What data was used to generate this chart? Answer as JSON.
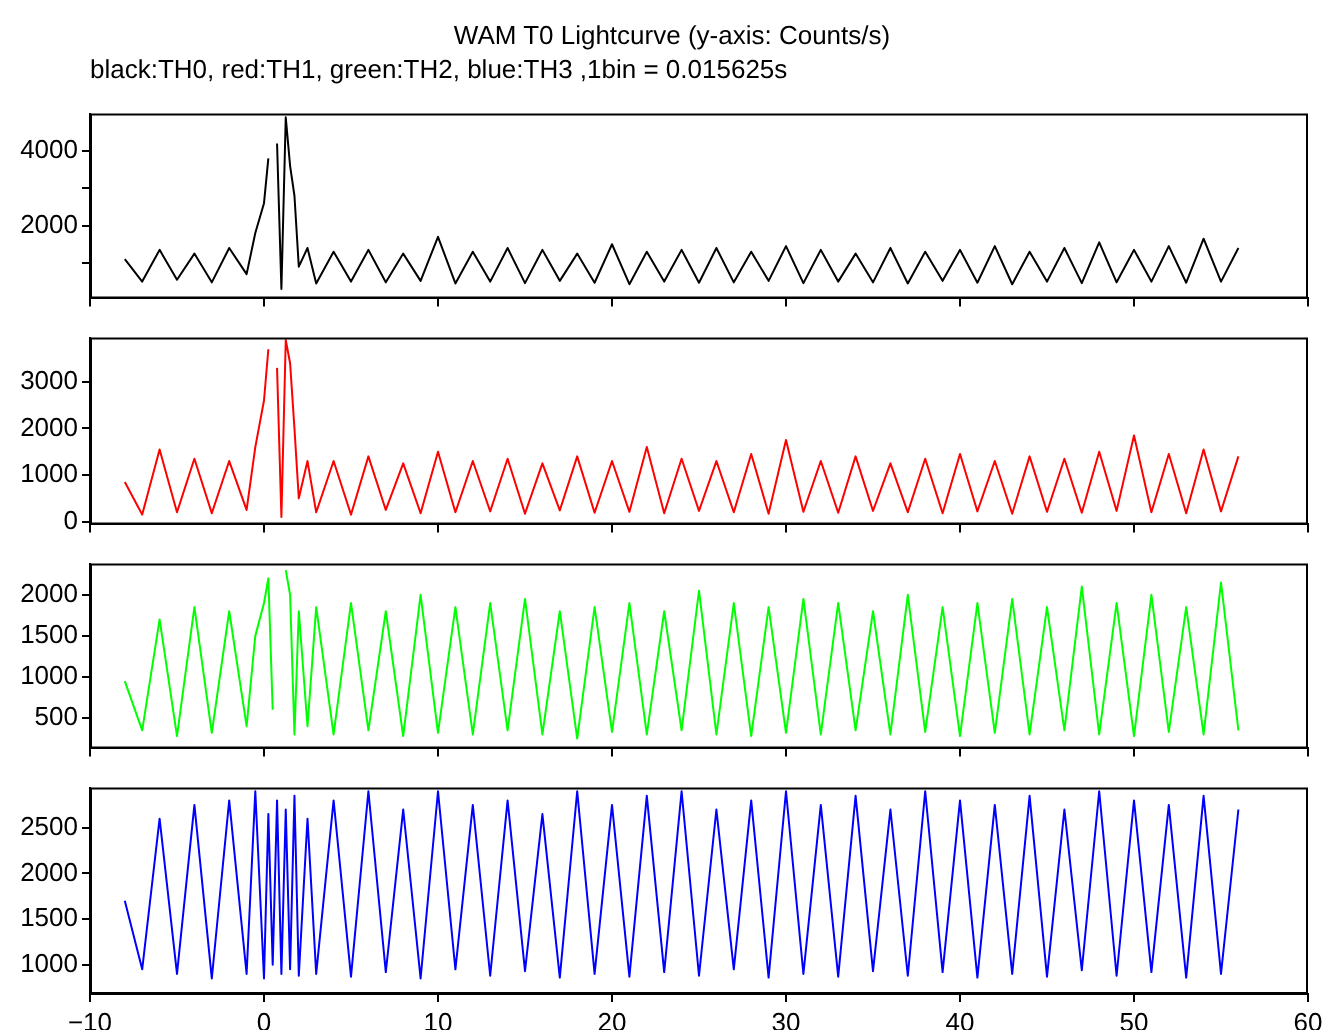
{
  "chart_data": [
    {
      "type": "line",
      "title": "WAM T0 Lightcurve (y-axis: Counts/s)",
      "subtitle": "black:TH0, red:TH1, green:TH2, blue:TH3 ,1bin = 0.015625s",
      "marker": "none",
      "tick_labels": "y",
      "x": [
        -8,
        -7,
        -6,
        -5,
        -4,
        -3,
        -2,
        -1,
        -0.5,
        0,
        0.25,
        0.5,
        0.75,
        1,
        1.25,
        1.5,
        1.75,
        2,
        2.5,
        3,
        4,
        5,
        6,
        7,
        8,
        9,
        10,
        11,
        12,
        13,
        14,
        15,
        16,
        17,
        18,
        19,
        20,
        21,
        22,
        23,
        24,
        25,
        26,
        27,
        28,
        29,
        30,
        31,
        32,
        33,
        34,
        35,
        36,
        37,
        38,
        39,
        40,
        41,
        42,
        43,
        44,
        45,
        46,
        47,
        48,
        49,
        50,
        51,
        52,
        53,
        54,
        55,
        56
      ],
      "xlim": [
        -10,
        60
      ],
      "ylim": [
        50,
        5000
      ],
      "yticks": [
        {
          "value": 1000,
          "label": null
        },
        2000,
        {
          "value": 3000,
          "label": null
        },
        4000
      ],
      "series": [
        {
          "color": "#000000",
          "values": [
            1100,
            500,
            1350,
            550,
            1250,
            480,
            1400,
            700,
            1800,
            2600,
            3800,
            null,
            4200,
            300,
            4900,
            3600,
            2800,
            900,
            1400,
            450,
            1300,
            500,
            1350,
            480,
            1250,
            520,
            1700,
            450,
            1300,
            500,
            1400,
            460,
            1350,
            520,
            1250,
            470,
            1500,
            430,
            1300,
            500,
            1350,
            470,
            1400,
            480,
            1300,
            520,
            1450,
            460,
            1350,
            500,
            1250,
            480,
            1400,
            450,
            1300,
            520,
            1350,
            470,
            1450,
            430,
            1300,
            500,
            1400,
            460,
            1550,
            480,
            1350,
            500,
            1450,
            470,
            1650,
            500,
            1400
          ]
        }
      ]
    },
    {
      "type": "line",
      "marker": "none",
      "tick_labels": "y",
      "x": [
        -8,
        -7,
        -6,
        -5,
        -4,
        -3,
        -2,
        -1,
        -0.5,
        0,
        0.25,
        0.5,
        0.75,
        1,
        1.25,
        1.5,
        1.75,
        2,
        2.5,
        3,
        4,
        5,
        6,
        7,
        8,
        9,
        10,
        11,
        12,
        13,
        14,
        15,
        16,
        17,
        18,
        19,
        20,
        21,
        22,
        23,
        24,
        25,
        26,
        27,
        28,
        29,
        30,
        31,
        32,
        33,
        34,
        35,
        36,
        37,
        38,
        39,
        40,
        41,
        42,
        43,
        44,
        45,
        46,
        47,
        48,
        49,
        50,
        51,
        52,
        53,
        54,
        55,
        56
      ],
      "xlim": [
        -10,
        60
      ],
      "ylim": [
        -60,
        3950
      ],
      "yticks": [
        0,
        1000,
        2000,
        3000
      ],
      "series": [
        {
          "color": "#ff0000",
          "values": [
            850,
            150,
            1550,
            200,
            1350,
            180,
            1300,
            250,
            1600,
            2600,
            3700,
            null,
            3300,
            100,
            3900,
            3400,
            2000,
            500,
            1300,
            200,
            1300,
            150,
            1400,
            250,
            1250,
            180,
            1500,
            200,
            1300,
            220,
            1350,
            170,
            1250,
            240,
            1400,
            190,
            1300,
            210,
            1600,
            180,
            1350,
            230,
            1300,
            200,
            1450,
            170,
            1750,
            210,
            1300,
            190,
            1400,
            230,
            1250,
            200,
            1350,
            180,
            1450,
            220,
            1300,
            170,
            1400,
            210,
            1350,
            190,
            1500,
            230,
            1850,
            200,
            1450,
            180,
            1550,
            220,
            1400
          ]
        }
      ]
    },
    {
      "type": "line",
      "marker": "none",
      "tick_labels": "y",
      "x": [
        -8,
        -7,
        -6,
        -5,
        -4,
        -3,
        -2,
        -1,
        -0.5,
        0,
        0.25,
        0.5,
        0.75,
        1,
        1.25,
        1.5,
        1.75,
        2,
        2.5,
        3,
        4,
        5,
        6,
        7,
        8,
        9,
        10,
        11,
        12,
        13,
        14,
        15,
        16,
        17,
        18,
        19,
        20,
        21,
        22,
        23,
        24,
        25,
        26,
        27,
        28,
        29,
        30,
        31,
        32,
        33,
        34,
        35,
        36,
        37,
        38,
        39,
        40,
        41,
        42,
        43,
        44,
        45,
        46,
        47,
        48,
        49,
        50,
        51,
        52,
        53,
        54,
        55,
        56
      ],
      "xlim": [
        -10,
        60
      ],
      "ylim": [
        130,
        2380
      ],
      "yticks": [
        500,
        1000,
        1500,
        2000
      ],
      "series": [
        {
          "color": "#00ff00",
          "values": [
            950,
            350,
            1700,
            280,
            1850,
            320,
            1800,
            400,
            1500,
            1900,
            2200,
            600,
            null,
            null,
            2300,
            2000,
            300,
            1800,
            400,
            1850,
            300,
            1900,
            350,
            1800,
            280,
            2000,
            320,
            1850,
            300,
            1900,
            350,
            1950,
            300,
            1800,
            250,
            1850,
            330,
            1900,
            300,
            1800,
            350,
            2050,
            300,
            1900,
            280,
            1850,
            320,
            1950,
            300,
            1900,
            350,
            1800,
            300,
            2000,
            330,
            1850,
            280,
            1900,
            320,
            1950,
            300,
            1850,
            350,
            2100,
            300,
            1900,
            280,
            2000,
            330,
            1850,
            300,
            2150,
            350
          ]
        }
      ]
    },
    {
      "type": "line",
      "marker": "none",
      "x": [
        -8,
        -7,
        -6,
        -5,
        -4,
        -3,
        -2,
        -1,
        -0.5,
        0,
        0.25,
        0.5,
        0.75,
        1,
        1.25,
        1.5,
        1.75,
        2,
        2.5,
        3,
        4,
        5,
        6,
        7,
        8,
        9,
        10,
        11,
        12,
        13,
        14,
        15,
        16,
        17,
        18,
        19,
        20,
        21,
        22,
        23,
        24,
        25,
        26,
        27,
        28,
        29,
        30,
        31,
        32,
        33,
        34,
        35,
        36,
        37,
        38,
        39,
        40,
        41,
        42,
        43,
        44,
        45,
        46,
        47,
        48,
        49,
        50,
        51,
        52,
        53,
        54,
        55,
        56
      ],
      "xlim": [
        -10,
        60
      ],
      "xticks": [
        {
          "value": -10,
          "label": "−10"
        },
        0,
        10,
        20,
        30,
        40,
        50,
        60
      ],
      "ylim": [
        680,
        2940
      ],
      "yticks": [
        1000,
        1500,
        2000,
        2500
      ],
      "series": [
        {
          "color": "#0000ff",
          "values": [
            1700,
            950,
            2600,
            900,
            2750,
            850,
            2800,
            900,
            2900,
            850,
            2650,
            1000,
            2800,
            900,
            2700,
            950,
            2850,
            880,
            2600,
            900,
            2800,
            870,
            2900,
            920,
            2700,
            850,
            2900,
            950,
            2750,
            880,
            2800,
            930,
            2650,
            860,
            2900,
            900,
            2750,
            870,
            2850,
            920,
            2900,
            880,
            2700,
            950,
            2800,
            860,
            2900,
            900,
            2750,
            870,
            2850,
            930,
            2700,
            880,
            2900,
            920,
            2800,
            860,
            2750,
            900,
            2850,
            870,
            2700,
            940,
            2900,
            880,
            2800,
            920,
            2750,
            860,
            2850,
            900,
            2700
          ]
        }
      ]
    }
  ]
}
